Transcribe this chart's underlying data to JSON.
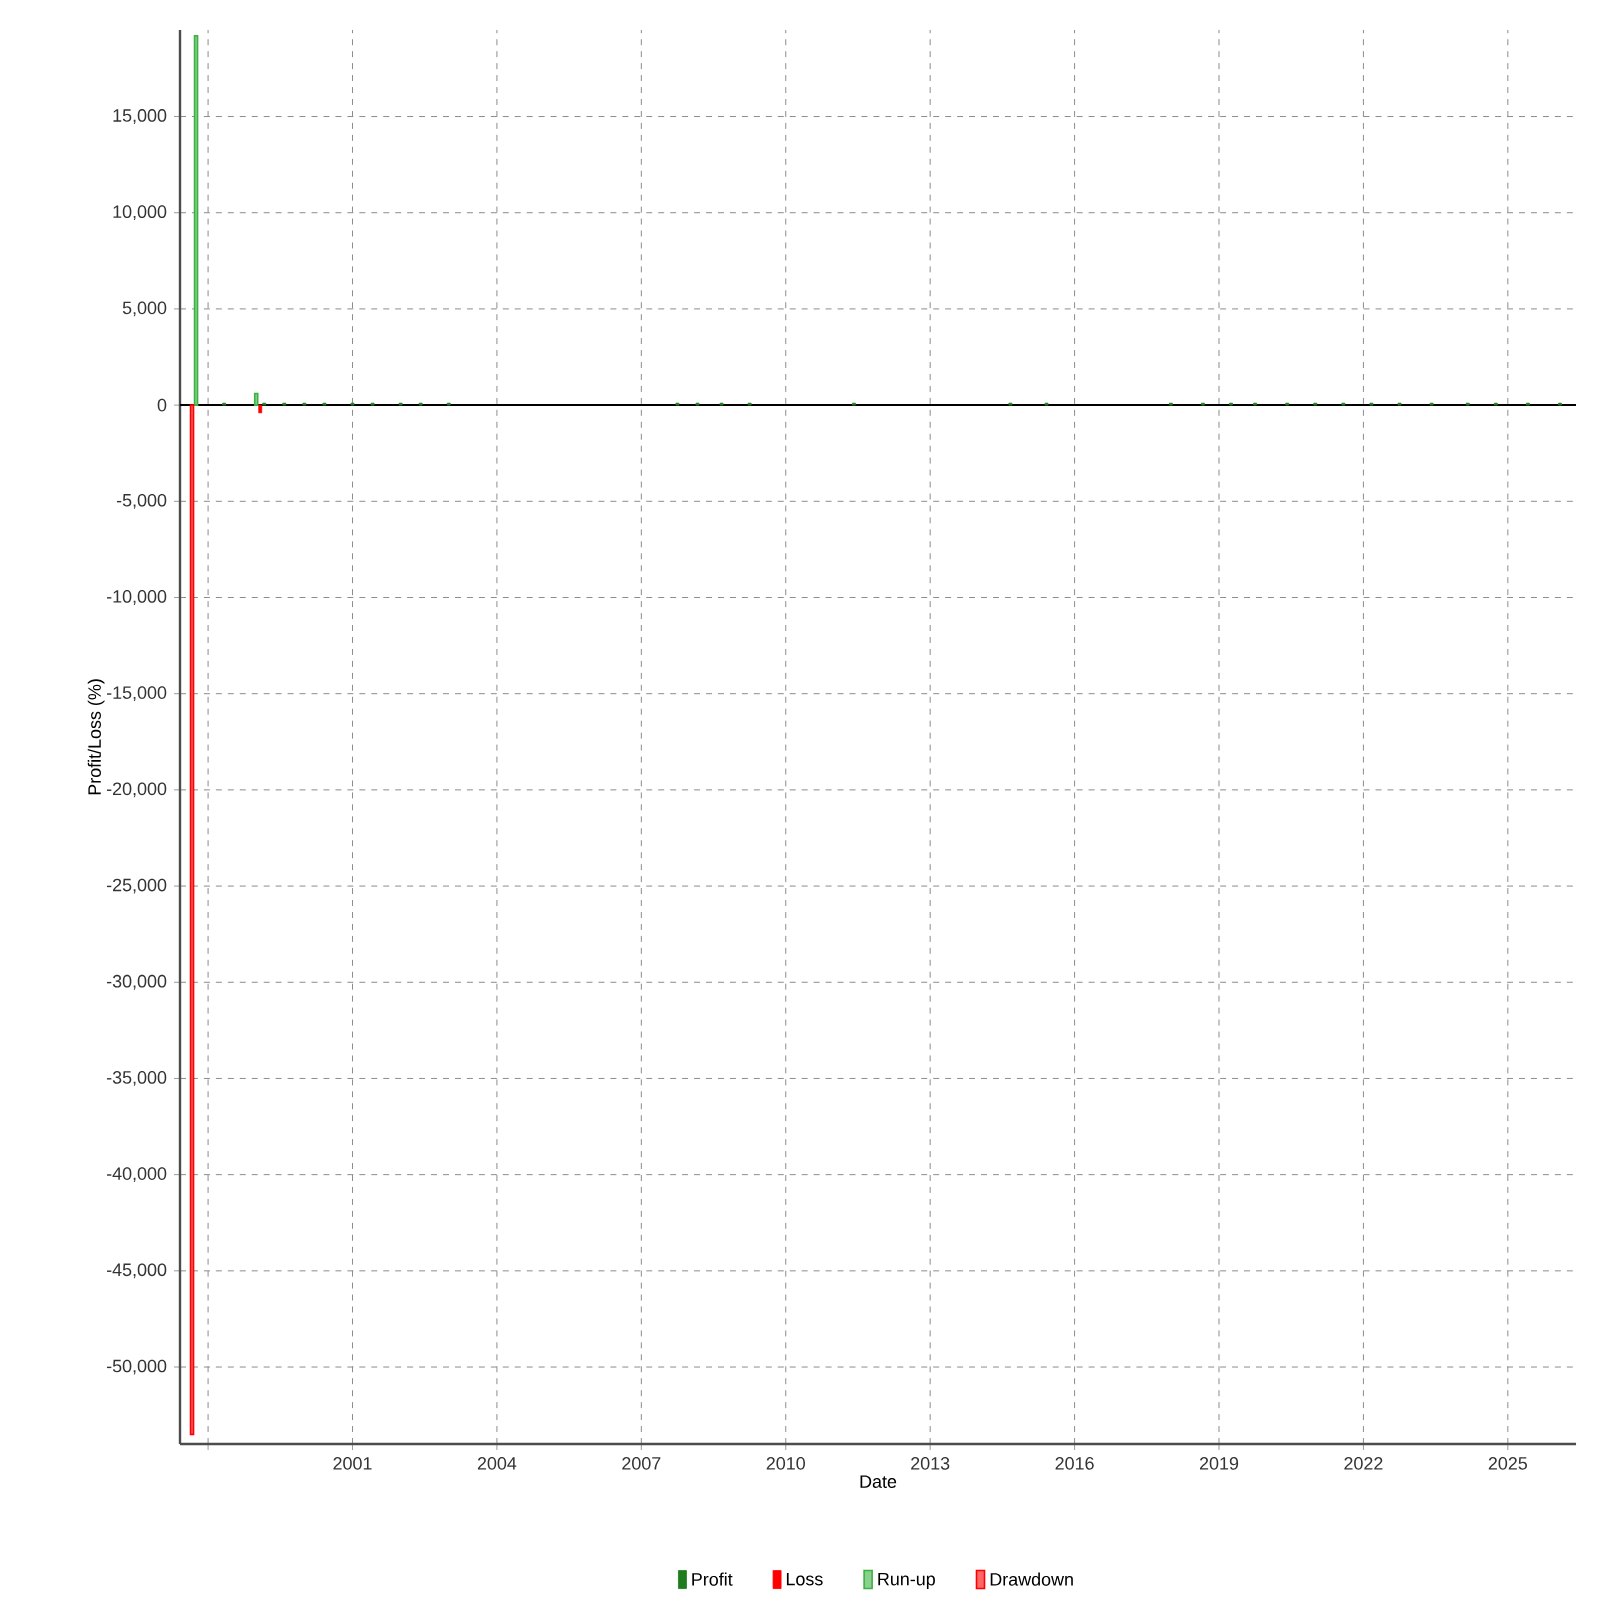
{
  "chart_data": {
    "type": "bar",
    "xlabel": "Date",
    "ylabel": "Profit/Loss (%)",
    "xlim": [
      "1997-06",
      "2026-06"
    ],
    "xticks": [
      {
        "value": "1998",
        "label": null
      },
      {
        "value": "2001",
        "label": "2001"
      },
      {
        "value": "2004",
        "label": "2004"
      },
      {
        "value": "2007",
        "label": "2007"
      },
      {
        "value": "2010",
        "label": "2010"
      },
      {
        "value": "2013",
        "label": "2013"
      },
      {
        "value": "2016",
        "label": "2016"
      },
      {
        "value": "2019",
        "label": "2019"
      },
      {
        "value": "2022",
        "label": "2022"
      },
      {
        "value": "2025",
        "label": "2025"
      }
    ],
    "ylim": [
      -54000,
      19500
    ],
    "yticks": [
      {
        "value": -50000,
        "label": "-50,000"
      },
      {
        "value": -45000,
        "label": "-45,000"
      },
      {
        "value": -40000,
        "label": "-40,000"
      },
      {
        "value": -35000,
        "label": "-35,000"
      },
      {
        "value": -30000,
        "label": "-30,000"
      },
      {
        "value": -25000,
        "label": "-25,000"
      },
      {
        "value": -20000,
        "label": "-20,000"
      },
      {
        "value": -15000,
        "label": "-15,000"
      },
      {
        "value": -10000,
        "label": "-10,000"
      },
      {
        "value": -5000,
        "label": "-5,000"
      },
      {
        "value": 0,
        "label": "0"
      },
      {
        "value": 5000,
        "label": "5,000"
      },
      {
        "value": 10000,
        "label": "10,000"
      },
      {
        "value": 15000,
        "label": "15,000"
      }
    ],
    "grid": true,
    "legend": "bottom",
    "series": [
      {
        "name": "Profit",
        "color": "#1e7b1e",
        "x": [
          "1998-05",
          "1999-03",
          "1999-08",
          "2000-01",
          "2000-06",
          "2001-01",
          "2001-06",
          "2002-01",
          "2002-06",
          "2003-01",
          "2007-10",
          "2008-03",
          "2008-09",
          "2009-04",
          "2011-06",
          "2014-09",
          "2015-06",
          "2018-01",
          "2018-09",
          "2019-04",
          "2019-10",
          "2020-06",
          "2021-01",
          "2021-08",
          "2022-03",
          "2022-10",
          "2023-06",
          "2024-03",
          "2024-10",
          "2025-06",
          "2026-02"
        ],
        "values": [
          100,
          100,
          100,
          100,
          100,
          100,
          100,
          100,
          100,
          100,
          100,
          100,
          100,
          100,
          100,
          100,
          100,
          100,
          100,
          100,
          100,
          100,
          100,
          100,
          100,
          100,
          100,
          100,
          100,
          100,
          100
        ]
      },
      {
        "name": "Loss",
        "color": "#ff0000",
        "x": [
          "1999-02"
        ],
        "values": [
          -400
        ]
      },
      {
        "name": "Run-up",
        "color": "#3cb043",
        "x": [
          "1997-10",
          "1999-01"
        ],
        "values": [
          19200,
          600
        ]
      },
      {
        "name": "Drawdown",
        "color": "#ff0000",
        "x": [
          "1997-09"
        ],
        "values": [
          -53500
        ]
      }
    ]
  }
}
